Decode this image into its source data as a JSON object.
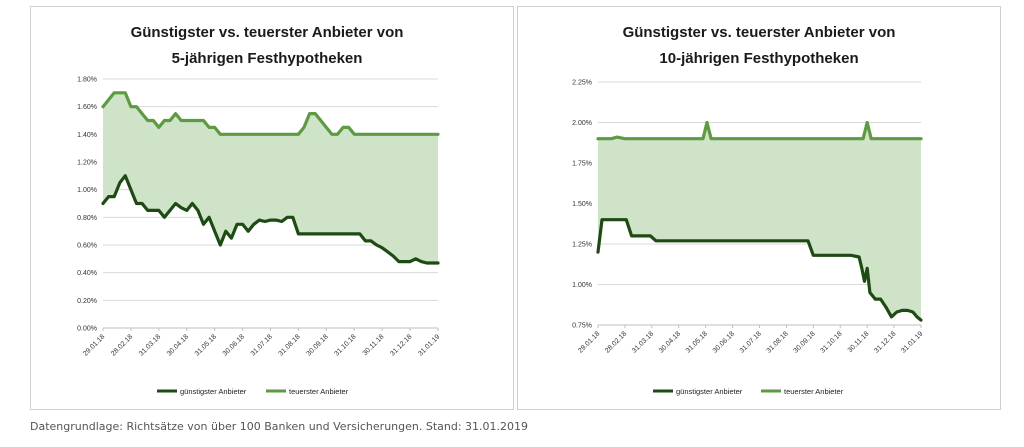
{
  "colors": {
    "guenstig": "#1e4a14",
    "teuer": "#5d9a42",
    "fill": "#cfe3c8",
    "grid": "#d9d9d9"
  },
  "footnote": "Datengrundlage: Richtsätze von über 100 Banken und Versicherungen. Stand: 31.01.2019",
  "chart_data": [
    {
      "type": "area",
      "title_line1": "Günstigster vs. teuerster Anbieter von",
      "title_line2": "5-jährigen Festhypotheken",
      "ylim": [
        0,
        1.8
      ],
      "yticks": [
        "0.00%",
        "0.20%",
        "0.40%",
        "0.60%",
        "0.80%",
        "1.00%",
        "1.20%",
        "1.40%",
        "1.60%",
        "1.80%"
      ],
      "xlabels": [
        "29.01.18",
        "28.02.18",
        "31.03.18",
        "30.04.18",
        "31.05.18",
        "30.06.18",
        "31.07.18",
        "31.08.18",
        "30.09.18",
        "31.10.18",
        "30.11.18",
        "31.12.18",
        "31.01.19"
      ],
      "grid": true,
      "legend_position": "bottom",
      "series": [
        {
          "name": "günstigster Anbieter",
          "x": [
            0,
            0.2,
            0.4,
            0.6,
            0.8,
            1.0,
            1.2,
            1.4,
            1.6,
            1.8,
            2.0,
            2.2,
            2.4,
            2.6,
            2.8,
            3.0,
            3.2,
            3.4,
            3.6,
            3.8,
            4.0,
            4.2,
            4.4,
            4.6,
            4.8,
            5.0,
            5.2,
            5.4,
            5.6,
            5.8,
            6.0,
            6.2,
            6.4,
            6.6,
            6.8,
            7.0,
            7.2,
            7.4,
            7.6,
            7.8,
            8.0,
            8.2,
            8.4,
            8.6,
            8.8,
            9.0,
            9.2,
            9.4,
            9.6,
            9.8,
            10.0,
            10.2,
            10.4,
            10.6,
            10.8,
            11.0,
            11.2,
            11.4,
            11.6,
            11.8,
            12.0
          ],
          "values": [
            0.9,
            0.95,
            0.95,
            1.05,
            1.1,
            1.0,
            0.9,
            0.9,
            0.85,
            0.85,
            0.85,
            0.8,
            0.85,
            0.9,
            0.87,
            0.85,
            0.9,
            0.85,
            0.75,
            0.8,
            0.7,
            0.6,
            0.7,
            0.65,
            0.75,
            0.75,
            0.7,
            0.75,
            0.78,
            0.77,
            0.78,
            0.78,
            0.77,
            0.8,
            0.8,
            0.68,
            0.68,
            0.68,
            0.68,
            0.68,
            0.68,
            0.68,
            0.68,
            0.68,
            0.68,
            0.68,
            0.68,
            0.63,
            0.63,
            0.6,
            0.58,
            0.55,
            0.52,
            0.48,
            0.48,
            0.48,
            0.5,
            0.48,
            0.47,
            0.47,
            0.47
          ]
        },
        {
          "name": "teuerster Anbieter",
          "x": [
            0,
            0.2,
            0.4,
            0.6,
            0.8,
            1.0,
            1.2,
            1.4,
            1.6,
            1.8,
            2.0,
            2.2,
            2.4,
            2.6,
            2.8,
            3.0,
            3.2,
            3.4,
            3.6,
            3.8,
            4.0,
            4.2,
            4.4,
            4.6,
            4.8,
            5.0,
            5.2,
            5.4,
            5.6,
            5.8,
            6.0,
            6.2,
            6.4,
            6.6,
            6.8,
            7.0,
            7.2,
            7.4,
            7.6,
            7.8,
            8.0,
            8.2,
            8.4,
            8.6,
            8.8,
            9.0,
            9.2,
            9.4,
            9.6,
            9.8,
            10.0,
            10.2,
            10.4,
            10.6,
            10.8,
            11.0,
            11.2,
            11.4,
            11.6,
            11.8,
            12.0
          ],
          "values": [
            1.6,
            1.65,
            1.7,
            1.7,
            1.7,
            1.6,
            1.6,
            1.55,
            1.5,
            1.5,
            1.45,
            1.5,
            1.5,
            1.55,
            1.5,
            1.5,
            1.5,
            1.5,
            1.5,
            1.45,
            1.45,
            1.4,
            1.4,
            1.4,
            1.4,
            1.4,
            1.4,
            1.4,
            1.4,
            1.4,
            1.4,
            1.4,
            1.4,
            1.4,
            1.4,
            1.4,
            1.45,
            1.55,
            1.55,
            1.5,
            1.45,
            1.4,
            1.4,
            1.45,
            1.45,
            1.4,
            1.4,
            1.4,
            1.4,
            1.4,
            1.4,
            1.4,
            1.4,
            1.4,
            1.4,
            1.4,
            1.4,
            1.4,
            1.4,
            1.4,
            1.4
          ]
        }
      ]
    },
    {
      "type": "area",
      "title_line1": "Günstigster vs. teuerster Anbieter von",
      "title_line2": "10-jährigen Festhypotheken",
      "ylim": [
        0.75,
        2.25
      ],
      "yticks": [
        "0.75%",
        "1.00%",
        "1.25%",
        "1.50%",
        "1.75%",
        "2.00%",
        "2.25%"
      ],
      "xlabels": [
        "29.01.18",
        "28.02.18",
        "31.03.18",
        "30.04.18",
        "31.05.18",
        "30.06.18",
        "31.07.18",
        "31.08.18",
        "30.09.18",
        "31.10.18",
        "30.11.18",
        "31.12.18",
        "31.01.19"
      ],
      "grid": true,
      "legend_position": "bottom",
      "series": [
        {
          "name": "günstigster Anbieter",
          "x": [
            0,
            0.15,
            0.35,
            0.6,
            0.85,
            1.05,
            1.25,
            1.45,
            1.7,
            1.95,
            2.15,
            2.35,
            2.6,
            3.0,
            3.5,
            4.0,
            4.5,
            5.0,
            5.5,
            6.0,
            6.5,
            7.0,
            7.5,
            7.8,
            8.0,
            8.3,
            8.7,
            9.0,
            9.4,
            9.7,
            9.8,
            9.9,
            10.0,
            10.1,
            10.2,
            10.3,
            10.5,
            10.7,
            10.9,
            11.1,
            11.3,
            11.5,
            11.7,
            11.85,
            12.0
          ],
          "values": [
            1.2,
            1.4,
            1.4,
            1.4,
            1.4,
            1.4,
            1.3,
            1.3,
            1.3,
            1.3,
            1.27,
            1.27,
            1.27,
            1.27,
            1.27,
            1.27,
            1.27,
            1.27,
            1.27,
            1.27,
            1.27,
            1.27,
            1.27,
            1.27,
            1.18,
            1.18,
            1.18,
            1.18,
            1.18,
            1.17,
            1.1,
            1.02,
            1.1,
            0.95,
            0.93,
            0.91,
            0.91,
            0.86,
            0.8,
            0.83,
            0.84,
            0.84,
            0.83,
            0.8,
            0.78
          ]
        },
        {
          "name": "teuerster Anbieter",
          "x": [
            0,
            0.3,
            0.5,
            0.7,
            1.0,
            1.5,
            2.0,
            2.5,
            3.0,
            3.5,
            3.9,
            4.05,
            4.2,
            4.5,
            5.0,
            5.5,
            6.0,
            6.5,
            7.0,
            7.5,
            8.0,
            8.5,
            9.0,
            9.5,
            9.85,
            10.0,
            10.15,
            10.5,
            11.0,
            11.5,
            12.0
          ],
          "values": [
            1.9,
            1.9,
            1.9,
            1.91,
            1.9,
            1.9,
            1.9,
            1.9,
            1.9,
            1.9,
            1.9,
            2.0,
            1.9,
            1.9,
            1.9,
            1.9,
            1.9,
            1.9,
            1.9,
            1.9,
            1.9,
            1.9,
            1.9,
            1.9,
            1.9,
            2.0,
            1.9,
            1.9,
            1.9,
            1.9,
            1.9
          ]
        }
      ]
    }
  ]
}
